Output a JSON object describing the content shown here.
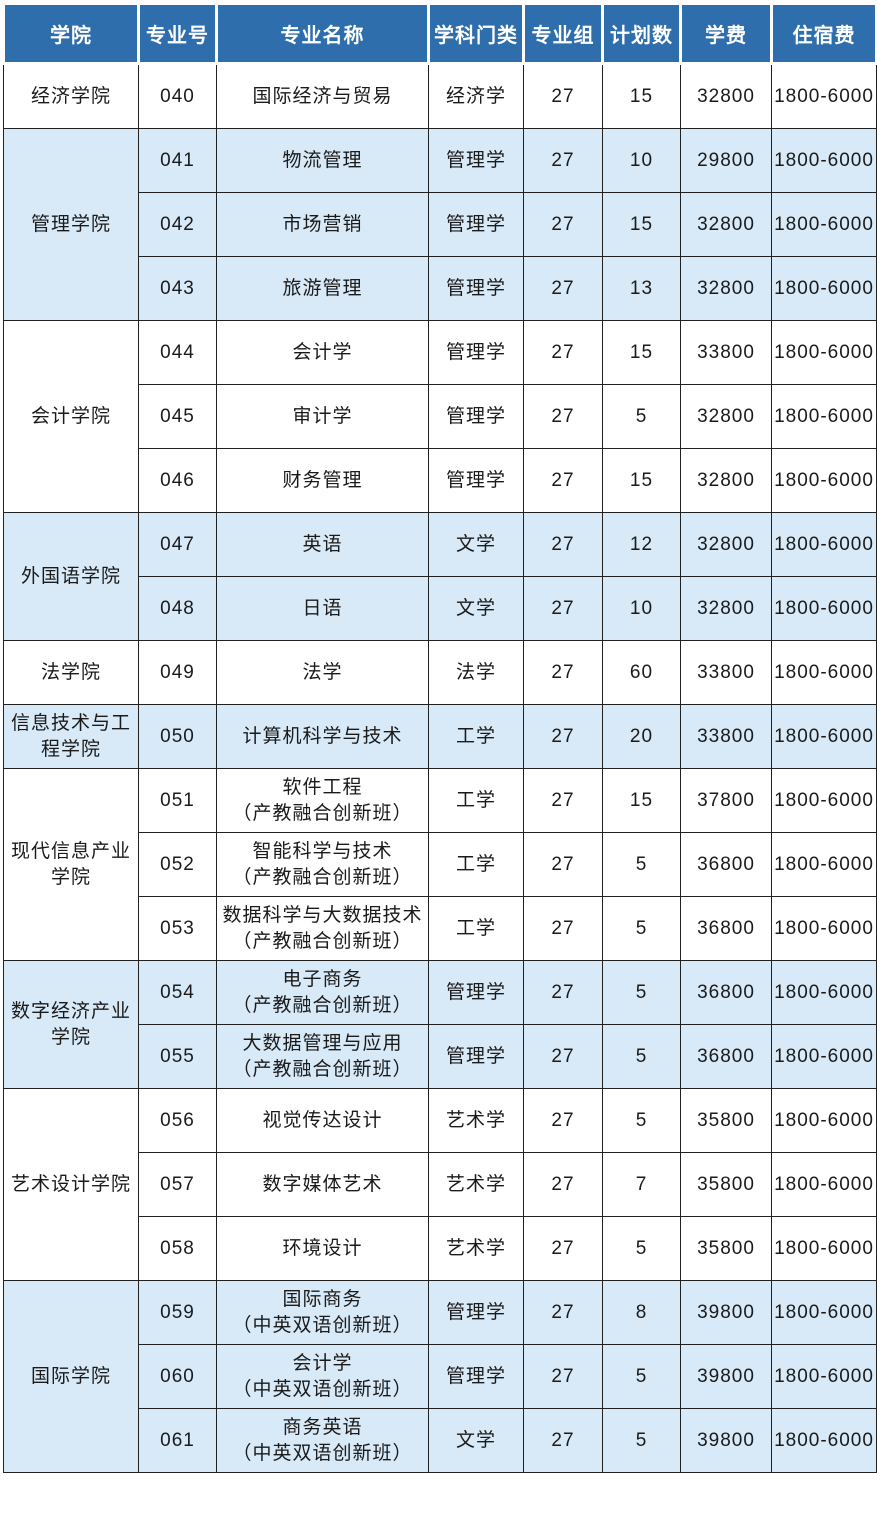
{
  "colors": {
    "header_bg": "#2F6EAC",
    "header_text": "#FFFFFF",
    "band_blue": "#D8E9F7",
    "band_white": "#FFFFFF",
    "grid": "#212121",
    "text": "#1A1A1A"
  },
  "table": {
    "columns": [
      "学院",
      "专业号",
      "专业名称",
      "学科门类",
      "专业组",
      "计划数",
      "学费",
      "住宿费"
    ],
    "groups": [
      {
        "college": "经济学院",
        "shaded": false,
        "rows": [
          {
            "major_no": "040",
            "major_name": "国际经济与贸易",
            "discipline": "经济学",
            "group_no": "27",
            "plan": "15",
            "tuition": "32800",
            "accommodation": "1800-6000"
          }
        ]
      },
      {
        "college": "管理学院",
        "shaded": true,
        "rows": [
          {
            "major_no": "041",
            "major_name": "物流管理",
            "discipline": "管理学",
            "group_no": "27",
            "plan": "10",
            "tuition": "29800",
            "accommodation": "1800-6000"
          },
          {
            "major_no": "042",
            "major_name": "市场营销",
            "discipline": "管理学",
            "group_no": "27",
            "plan": "15",
            "tuition": "32800",
            "accommodation": "1800-6000"
          },
          {
            "major_no": "043",
            "major_name": "旅游管理",
            "discipline": "管理学",
            "group_no": "27",
            "plan": "13",
            "tuition": "32800",
            "accommodation": "1800-6000"
          }
        ]
      },
      {
        "college": "会计学院",
        "shaded": false,
        "rows": [
          {
            "major_no": "044",
            "major_name": "会计学",
            "discipline": "管理学",
            "group_no": "27",
            "plan": "15",
            "tuition": "33800",
            "accommodation": "1800-6000"
          },
          {
            "major_no": "045",
            "major_name": "审计学",
            "discipline": "管理学",
            "group_no": "27",
            "plan": "5",
            "tuition": "32800",
            "accommodation": "1800-6000"
          },
          {
            "major_no": "046",
            "major_name": "财务管理",
            "discipline": "管理学",
            "group_no": "27",
            "plan": "15",
            "tuition": "32800",
            "accommodation": "1800-6000"
          }
        ]
      },
      {
        "college": "外国语学院",
        "shaded": true,
        "rows": [
          {
            "major_no": "047",
            "major_name": "英语",
            "discipline": "文学",
            "group_no": "27",
            "plan": "12",
            "tuition": "32800",
            "accommodation": "1800-6000"
          },
          {
            "major_no": "048",
            "major_name": "日语",
            "discipline": "文学",
            "group_no": "27",
            "plan": "10",
            "tuition": "32800",
            "accommodation": "1800-6000"
          }
        ]
      },
      {
        "college": "法学院",
        "shaded": false,
        "rows": [
          {
            "major_no": "049",
            "major_name": "法学",
            "discipline": "法学",
            "group_no": "27",
            "plan": "60",
            "tuition": "33800",
            "accommodation": "1800-6000"
          }
        ]
      },
      {
        "college": "信息技术与工程学院",
        "shaded": true,
        "rows": [
          {
            "major_no": "050",
            "major_name": "计算机科学与技术",
            "discipline": "工学",
            "group_no": "27",
            "plan": "20",
            "tuition": "33800",
            "accommodation": "1800-6000"
          }
        ]
      },
      {
        "college": "现代信息产业学院",
        "shaded": false,
        "rows": [
          {
            "major_no": "051",
            "major_name": "软件工程\n（产教融合创新班）",
            "discipline": "工学",
            "group_no": "27",
            "plan": "15",
            "tuition": "37800",
            "accommodation": "1800-6000"
          },
          {
            "major_no": "052",
            "major_name": "智能科学与技术\n（产教融合创新班）",
            "discipline": "工学",
            "group_no": "27",
            "plan": "5",
            "tuition": "36800",
            "accommodation": "1800-6000"
          },
          {
            "major_no": "053",
            "major_name": "数据科学与大数据技术\n（产教融合创新班）",
            "discipline": "工学",
            "group_no": "27",
            "plan": "5",
            "tuition": "36800",
            "accommodation": "1800-6000"
          }
        ]
      },
      {
        "college": "数字经济产业学院",
        "shaded": true,
        "rows": [
          {
            "major_no": "054",
            "major_name": "电子商务\n（产教融合创新班）",
            "discipline": "管理学",
            "group_no": "27",
            "plan": "5",
            "tuition": "36800",
            "accommodation": "1800-6000"
          },
          {
            "major_no": "055",
            "major_name": "大数据管理与应用\n（产教融合创新班）",
            "discipline": "管理学",
            "group_no": "27",
            "plan": "5",
            "tuition": "36800",
            "accommodation": "1800-6000"
          }
        ]
      },
      {
        "college": "艺术设计学院",
        "shaded": false,
        "rows": [
          {
            "major_no": "056",
            "major_name": "视觉传达设计",
            "discipline": "艺术学",
            "group_no": "27",
            "plan": "5",
            "tuition": "35800",
            "accommodation": "1800-6000"
          },
          {
            "major_no": "057",
            "major_name": "数字媒体艺术",
            "discipline": "艺术学",
            "group_no": "27",
            "plan": "7",
            "tuition": "35800",
            "accommodation": "1800-6000"
          },
          {
            "major_no": "058",
            "major_name": "环境设计",
            "discipline": "艺术学",
            "group_no": "27",
            "plan": "5",
            "tuition": "35800",
            "accommodation": "1800-6000"
          }
        ]
      },
      {
        "college": "国际学院",
        "shaded": true,
        "rows": [
          {
            "major_no": "059",
            "major_name": "国际商务\n（中英双语创新班）",
            "discipline": "管理学",
            "group_no": "27",
            "plan": "8",
            "tuition": "39800",
            "accommodation": "1800-6000"
          },
          {
            "major_no": "060",
            "major_name": "会计学\n（中英双语创新班）",
            "discipline": "管理学",
            "group_no": "27",
            "plan": "5",
            "tuition": "39800",
            "accommodation": "1800-6000"
          },
          {
            "major_no": "061",
            "major_name": "商务英语\n（中英双语创新班）",
            "discipline": "文学",
            "group_no": "27",
            "plan": "5",
            "tuition": "39800",
            "accommodation": "1800-6000"
          }
        ]
      }
    ]
  }
}
